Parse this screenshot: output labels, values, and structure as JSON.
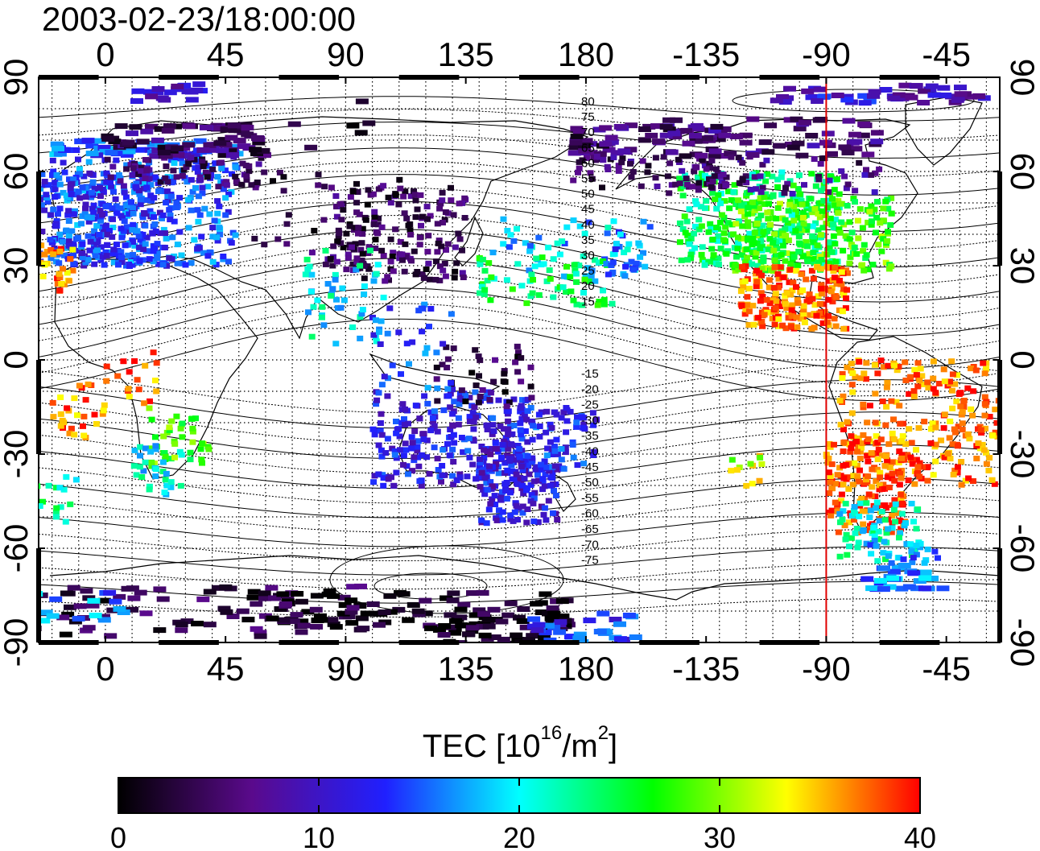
{
  "title": "2003-02-23/18:00:00",
  "map": {
    "x_ticks_top": [
      "0",
      "45",
      "90",
      "135",
      "180",
      "-135",
      "-90",
      "-45"
    ],
    "x_ticks_bottom": [
      "0",
      "45",
      "90",
      "135",
      "180",
      "-135",
      "-90",
      "-45"
    ],
    "y_ticks_left": [
      "90",
      "60",
      "30",
      "0",
      "-30",
      "-60",
      "-90"
    ],
    "y_ticks_right": [
      "90",
      "60",
      "30",
      "0",
      "-30",
      "-60",
      "-90"
    ],
    "lon_start": -25,
    "lon_end": 335,
    "lat_min": -90,
    "lat_max": 90,
    "grid": "dotted 10° graticule",
    "marker_longitude": -90,
    "marker_color": "#e00000",
    "contour_labels_north": [
      "80",
      "75",
      "70",
      "65",
      "60",
      "55",
      "50",
      "45",
      "40",
      "35",
      "30",
      "25",
      "20",
      "15"
    ],
    "contour_labels_south": [
      "-15",
      "-20",
      "-25",
      "-30",
      "-35",
      "-40",
      "-45",
      "-50",
      "-55",
      "-60",
      "-65",
      "-70",
      "-75"
    ]
  },
  "colorbar": {
    "label_main": "TEC  [10",
    "label_exp1": "16",
    "label_mid": "/m",
    "label_exp2": "2",
    "label_end": "]",
    "ticks": [
      "0",
      "10",
      "20",
      "30",
      "40"
    ],
    "range": [
      0,
      40
    ],
    "colormap": [
      "#000000",
      "#5a0a8c",
      "#2020ff",
      "#00ffff",
      "#00ff00",
      "#ffff00",
      "#ff0000"
    ]
  }
}
